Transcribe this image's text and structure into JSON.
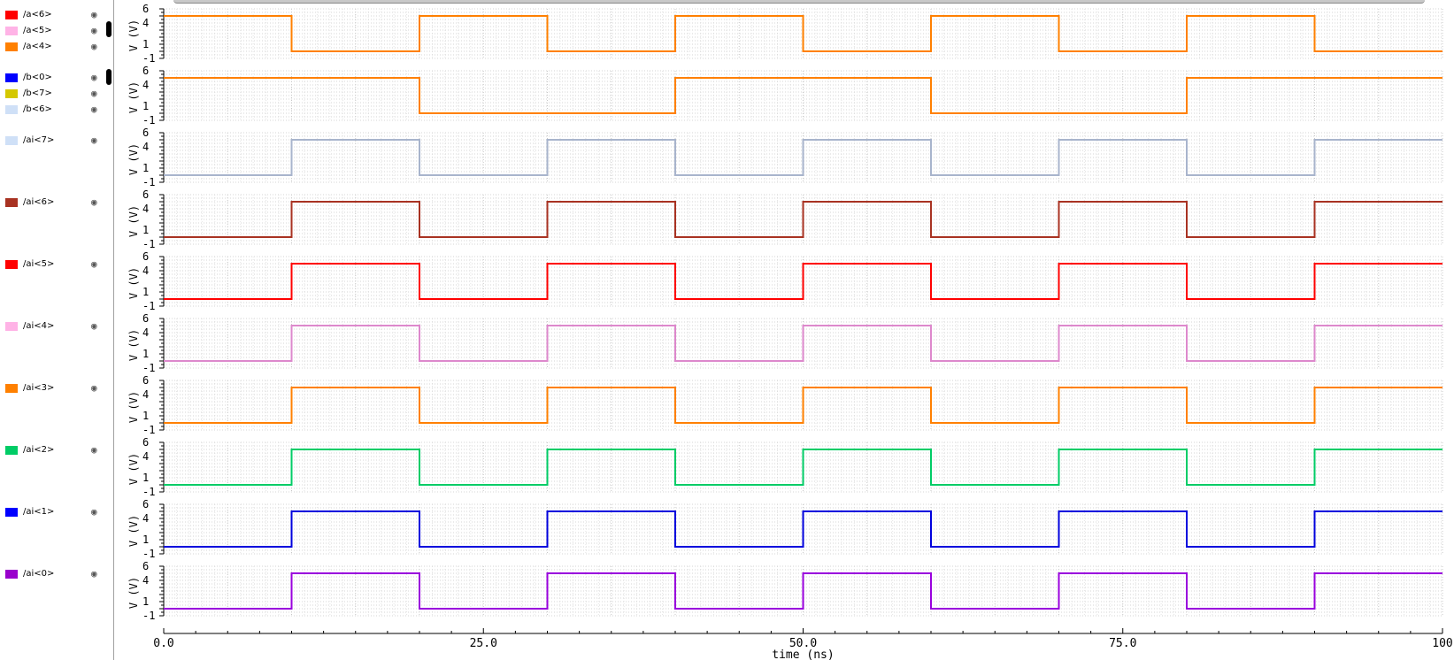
{
  "legend": {
    "items": [
      {
        "label": "/a<6>",
        "color": "#ff0000",
        "icon": "eye-icon"
      },
      {
        "label": "/a<5>",
        "color": "#ffb3e6",
        "icon": "eye-icon"
      },
      {
        "label": "/a<4>",
        "color": "#ff8000",
        "icon": "eye-icon"
      },
      {
        "label": "/b<0>",
        "color": "#0000ff",
        "icon": "eye-icon"
      },
      {
        "label": "/b<7>",
        "color": "#d4c800",
        "icon": "eye-icon"
      },
      {
        "label": "/b<6>",
        "color": "#cfe0f7",
        "icon": "eye-icon"
      },
      {
        "label": "/ai<7>",
        "color": "#cfe0f7",
        "icon": "eye-icon"
      },
      {
        "label": "/ai<6>",
        "color": "#a83222",
        "icon": "eye-icon"
      },
      {
        "label": "/ai<5>",
        "color": "#ff0000",
        "icon": "eye-icon"
      },
      {
        "label": "/ai<4>",
        "color": "#ffb3e6",
        "icon": "eye-icon"
      },
      {
        "label": "/ai<3>",
        "color": "#ff8000",
        "icon": "eye-icon"
      },
      {
        "label": "/ai<2>",
        "color": "#00cc66",
        "icon": "eye-icon"
      },
      {
        "label": "/ai<1>",
        "color": "#0000ff",
        "icon": "eye-icon"
      },
      {
        "label": "/ai<0>",
        "color": "#9900cc",
        "icon": "eye-icon"
      }
    ]
  },
  "chart_data": {
    "type": "line",
    "xlabel": "time (ns)",
    "xlim": [
      0,
      100
    ],
    "x_ticks": [
      "0.0",
      "25.0",
      "50.0",
      "75.0",
      "100"
    ],
    "ylabel": "V (V)",
    "ylim": [
      -1,
      6
    ],
    "y_ticks": [
      "6",
      "4",
      "1",
      "-1"
    ],
    "grid": true,
    "panels": [
      {
        "series": [
          {
            "color": "#ff8000",
            "x": [
              0,
              10,
              10,
              20,
              20,
              30,
              30,
              40,
              40,
              50,
              50,
              60,
              60,
              70,
              70,
              80,
              80,
              90,
              90,
              100
            ],
            "y": [
              5,
              5,
              0,
              0,
              5,
              5,
              0,
              0,
              5,
              5,
              0,
              0,
              5,
              5,
              0,
              0,
              5,
              5,
              0,
              0
            ]
          }
        ]
      },
      {
        "series": [
          {
            "color": "#ff8000",
            "x": [
              0,
              20,
              20,
              40,
              40,
              60,
              60,
              80,
              80,
              100
            ],
            "y": [
              5,
              5,
              0,
              0,
              5,
              5,
              0,
              0,
              5,
              5
            ]
          }
        ]
      },
      {
        "series": [
          {
            "color": "#a8b4cc",
            "x": [
              0,
              10,
              10,
              20,
              20,
              30,
              30,
              40,
              40,
              50,
              50,
              60,
              60,
              70,
              70,
              80,
              80,
              90,
              90,
              100
            ],
            "y": [
              0,
              0,
              5,
              5,
              0,
              0,
              5,
              5,
              0,
              0,
              5,
              5,
              0,
              0,
              5,
              5,
              0,
              0,
              5,
              5
            ]
          }
        ]
      },
      {
        "series": [
          {
            "color": "#a83222",
            "x": [
              0,
              10,
              10,
              20,
              20,
              30,
              30,
              40,
              40,
              50,
              50,
              60,
              60,
              70,
              70,
              80,
              80,
              90,
              90,
              100
            ],
            "y": [
              0,
              0,
              5,
              5,
              0,
              0,
              5,
              5,
              0,
              0,
              5,
              5,
              0,
              0,
              5,
              5,
              0,
              0,
              5,
              5
            ]
          }
        ]
      },
      {
        "series": [
          {
            "color": "#ff0000",
            "x": [
              0,
              10,
              10,
              20,
              20,
              30,
              30,
              40,
              40,
              50,
              50,
              60,
              60,
              70,
              70,
              80,
              80,
              90,
              90,
              100
            ],
            "y": [
              0,
              0,
              5,
              5,
              0,
              0,
              5,
              5,
              0,
              0,
              5,
              5,
              0,
              0,
              5,
              5,
              0,
              0,
              5,
              5
            ]
          }
        ]
      },
      {
        "series": [
          {
            "color": "#dd88cc",
            "x": [
              0,
              10,
              10,
              20,
              20,
              30,
              30,
              40,
              40,
              50,
              50,
              60,
              60,
              70,
              70,
              80,
              80,
              90,
              90,
              100
            ],
            "y": [
              0,
              0,
              5,
              5,
              0,
              0,
              5,
              5,
              0,
              0,
              5,
              5,
              0,
              0,
              5,
              5,
              0,
              0,
              5,
              5
            ]
          }
        ]
      },
      {
        "series": [
          {
            "color": "#ff8000",
            "x": [
              0,
              10,
              10,
              20,
              20,
              30,
              30,
              40,
              40,
              50,
              50,
              60,
              60,
              70,
              70,
              80,
              80,
              90,
              90,
              100
            ],
            "y": [
              0,
              0,
              5,
              5,
              0,
              0,
              5,
              5,
              0,
              0,
              5,
              5,
              0,
              0,
              5,
              5,
              0,
              0,
              5,
              5
            ]
          }
        ]
      },
      {
        "series": [
          {
            "color": "#00cc66",
            "x": [
              0,
              10,
              10,
              20,
              20,
              30,
              30,
              40,
              40,
              50,
              50,
              60,
              60,
              70,
              70,
              80,
              80,
              90,
              90,
              100
            ],
            "y": [
              0,
              0,
              5,
              5,
              0,
              0,
              5,
              5,
              0,
              0,
              5,
              5,
              0,
              0,
              5,
              5,
              0,
              0,
              5,
              5
            ]
          }
        ]
      },
      {
        "series": [
          {
            "color": "#0000dd",
            "x": [
              0,
              10,
              10,
              20,
              20,
              30,
              30,
              40,
              40,
              50,
              50,
              60,
              60,
              70,
              70,
              80,
              80,
              90,
              90,
              100
            ],
            "y": [
              0,
              0,
              5,
              5,
              0,
              0,
              5,
              5,
              0,
              0,
              5,
              5,
              0,
              0,
              5,
              5,
              0,
              0,
              5,
              5
            ]
          }
        ]
      },
      {
        "series": [
          {
            "color": "#9900dd",
            "x": [
              0,
              10,
              10,
              20,
              20,
              30,
              30,
              40,
              40,
              50,
              50,
              60,
              60,
              70,
              70,
              80,
              80,
              90,
              90,
              100
            ],
            "y": [
              0,
              0,
              5,
              5,
              0,
              0,
              5,
              5,
              0,
              0,
              5,
              5,
              0,
              0,
              5,
              5,
              0,
              0,
              5,
              5
            ]
          }
        ]
      }
    ]
  }
}
